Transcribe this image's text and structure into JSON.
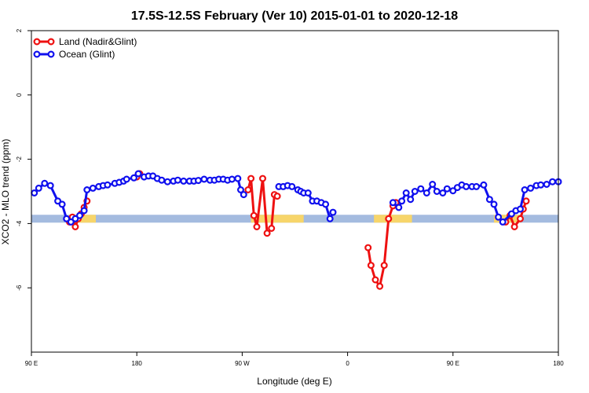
{
  "chart_data": {
    "type": "line",
    "title": "17.5S-12.5S February (Ver 10)   2015-01-01 to 2020-12-18",
    "xlabel": "Longitude (deg E)",
    "ylabel": "XCO2 - MLO trend (ppm)",
    "xlim": [
      90,
      450
    ],
    "ylim": [
      -8,
      2
    ],
    "x_ticks": [
      {
        "value": 90,
        "label": "90 E"
      },
      {
        "value": 162,
        "label": "180"
      },
      {
        "value": 234,
        "label": "90 W"
      },
      {
        "value": 306,
        "label": "0"
      },
      {
        "value": 378,
        "label": "90 E"
      },
      {
        "value": 450,
        "label": "180"
      }
    ],
    "y_ticks": [
      2,
      0,
      -2,
      -4,
      -6
    ],
    "grid": false,
    "legend_position": "top-left",
    "background_band": {
      "y": -3.85,
      "land_color": "#f7d56a",
      "ocean_color": "#a4bbdf",
      "land_ranges": [
        [
          118,
          134
        ],
        [
          240,
          276
        ],
        [
          324,
          350
        ],
        [
          406,
          424
        ]
      ]
    },
    "series": [
      {
        "name": "Land (Nadir&Glint)",
        "color": "#ee1111",
        "segments": [
          [
            [
              116,
              -3.95
            ],
            [
              118,
              -3.8
            ],
            [
              120,
              -4.1
            ],
            [
              122,
              -3.85
            ],
            [
              124,
              -3.7
            ],
            [
              126,
              -3.5
            ],
            [
              128,
              -3.3
            ]
          ],
          [
            [
              162,
              -2.55
            ],
            [
              164,
              -2.45
            ]
          ],
          [
            [
              238,
              -2.95
            ],
            [
              240,
              -2.6
            ],
            [
              242,
              -3.75
            ],
            [
              244,
              -4.1
            ],
            [
              248,
              -2.6
            ],
            [
              251,
              -4.3
            ],
            [
              254,
              -4.15
            ],
            [
              256,
              -3.1
            ],
            [
              258,
              -3.15
            ]
          ],
          [
            [
              320,
              -4.75
            ],
            [
              322,
              -5.3
            ],
            [
              325,
              -5.75
            ],
            [
              328,
              -5.95
            ],
            [
              331,
              -5.3
            ],
            [
              334,
              -3.85
            ],
            [
              337,
              -3.45
            ],
            [
              339,
              -3.35
            ]
          ],
          [
            [
              414,
              -3.95
            ],
            [
              417,
              -3.75
            ],
            [
              420,
              -4.1
            ],
            [
              424,
              -3.85
            ],
            [
              426,
              -3.55
            ],
            [
              428,
              -3.3
            ]
          ]
        ]
      },
      {
        "name": "Ocean (Glint)",
        "color": "#1010ee",
        "segments": [
          [
            [
              92,
              -3.05
            ],
            [
              95,
              -2.9
            ],
            [
              99,
              -2.75
            ],
            [
              103,
              -2.82
            ],
            [
              108,
              -3.3
            ],
            [
              111,
              -3.4
            ],
            [
              114,
              -3.85
            ],
            [
              117,
              -3.95
            ],
            [
              120,
              -3.85
            ],
            [
              123,
              -3.75
            ],
            [
              126,
              -3.6
            ],
            [
              128,
              -2.95
            ],
            [
              132,
              -2.9
            ],
            [
              136,
              -2.85
            ],
            [
              139,
              -2.82
            ],
            [
              142,
              -2.8
            ],
            [
              147,
              -2.75
            ],
            [
              150,
              -2.72
            ],
            [
              153,
              -2.68
            ],
            [
              155,
              -2.62
            ],
            [
              160,
              -2.58
            ],
            [
              163,
              -2.45
            ],
            [
              167,
              -2.55
            ],
            [
              170,
              -2.52
            ],
            [
              173,
              -2.52
            ],
            [
              176,
              -2.6
            ],
            [
              179,
              -2.65
            ],
            [
              183,
              -2.7
            ],
            [
              187,
              -2.68
            ],
            [
              190,
              -2.65
            ],
            [
              194,
              -2.68
            ],
            [
              198,
              -2.68
            ],
            [
              201,
              -2.68
            ],
            [
              204,
              -2.66
            ],
            [
              208,
              -2.62
            ],
            [
              212,
              -2.65
            ],
            [
              215,
              -2.65
            ],
            [
              218,
              -2.62
            ],
            [
              221,
              -2.62
            ],
            [
              224,
              -2.65
            ],
            [
              227,
              -2.62
            ],
            [
              231,
              -2.6
            ],
            [
              233,
              -2.95
            ],
            [
              235,
              -3.1
            ]
          ],
          [
            [
              259,
              -2.85
            ],
            [
              262,
              -2.85
            ],
            [
              265,
              -2.82
            ],
            [
              268,
              -2.85
            ],
            [
              272,
              -2.95
            ],
            [
              274,
              -3.0
            ],
            [
              276,
              -3.05
            ],
            [
              279,
              -3.05
            ],
            [
              282,
              -3.3
            ],
            [
              285,
              -3.3
            ],
            [
              288,
              -3.35
            ],
            [
              291,
              -3.4
            ],
            [
              294,
              -3.85
            ],
            [
              296,
              -3.65
            ]
          ],
          [
            [
              337,
              -3.35
            ],
            [
              341,
              -3.5
            ],
            [
              343,
              -3.3
            ],
            [
              346,
              -3.05
            ],
            [
              349,
              -3.25
            ],
            [
              352,
              -3.0
            ],
            [
              356,
              -2.92
            ],
            [
              360,
              -3.05
            ],
            [
              364,
              -2.78
            ],
            [
              367,
              -3.0
            ],
            [
              371,
              -3.05
            ],
            [
              374,
              -2.92
            ],
            [
              378,
              -2.98
            ],
            [
              381,
              -2.88
            ],
            [
              384,
              -2.8
            ],
            [
              387,
              -2.85
            ],
            [
              391,
              -2.85
            ],
            [
              394,
              -2.85
            ],
            [
              399,
              -2.8
            ],
            [
              403,
              -3.25
            ],
            [
              406,
              -3.4
            ],
            [
              409,
              -3.8
            ],
            [
              412,
              -3.95
            ],
            [
              418,
              -3.7
            ],
            [
              421,
              -3.6
            ],
            [
              424,
              -3.55
            ],
            [
              427,
              -2.95
            ],
            [
              431,
              -2.9
            ],
            [
              435,
              -2.82
            ],
            [
              438,
              -2.8
            ],
            [
              442,
              -2.78
            ],
            [
              446,
              -2.7
            ],
            [
              450,
              -2.7
            ]
          ]
        ]
      }
    ]
  }
}
